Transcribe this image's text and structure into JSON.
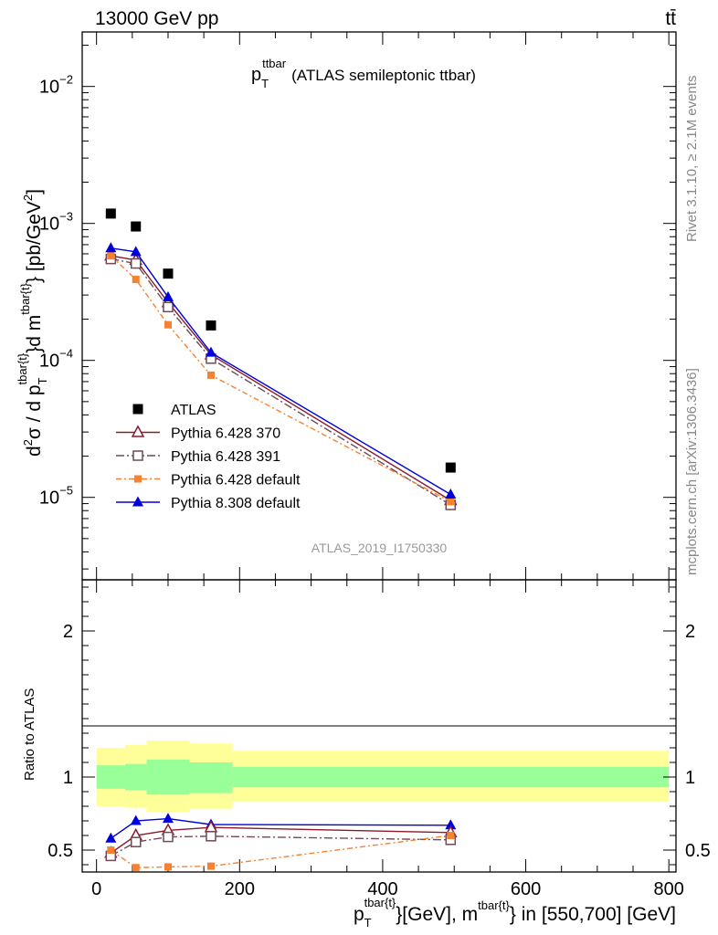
{
  "header": {
    "left": "13000 GeV pp",
    "right": "tt̄"
  },
  "side_labels": {
    "rivet": "Rivet 3.1.10, ≥ 2.1M events",
    "mcplots": "mcplots.cern.ch [arXiv:1306.3436]"
  },
  "plot_title": {
    "main": "p",
    "sub": "T",
    "sup": "ttbar",
    "rest": "(ATLAS semileptonic ttbar)"
  },
  "analysis_label": "ATLAS_2019_I1750330",
  "colors": {
    "data": "#000000",
    "p6_370": "#8b1a2b",
    "p6_391": "#6e4a5a",
    "p6_default": "#f58231",
    "p8_default": "#0000dd",
    "band_outer": "#ffff99",
    "band_inner": "#99ff99"
  },
  "chart_data": [
    {
      "type": "line",
      "panel": "main",
      "yscale": "log",
      "xlim": [
        -20,
        810
      ],
      "ylim": [
        2.5e-06,
        0.025
      ],
      "ylabel": {
        "pre": "d",
        "sup2": "2",
        "sigma": "σ  /  d p",
        "subT": "T",
        "sup_t": "tbar{t}",
        "mid": "}d m",
        "sup_m": "tbar{t}",
        "post": "} [pb/GeV",
        "sup_unit": "2",
        "end": "]"
      },
      "y_ticks": [
        {
          "value": 1e-05,
          "base": "10",
          "exp": "−5"
        },
        {
          "value": 0.0001,
          "base": "10",
          "exp": "−4"
        },
        {
          "value": 0.001,
          "base": "10",
          "exp": "−3"
        },
        {
          "value": 0.01,
          "base": "10",
          "exp": "−2"
        }
      ],
      "x": [
        20,
        55,
        100,
        160,
        495
      ],
      "series": [
        {
          "key": "data",
          "name": "ATLAS",
          "marker": "square",
          "values": [
            0.00118,
            0.00095,
            0.00043,
            0.00018,
            1.65e-05
          ]
        },
        {
          "key": "p6_370",
          "name": "Pythia 6.428 370",
          "marker": "triangle-open",
          "dash": "",
          "values": [
            0.00058,
            0.00054,
            0.000265,
            0.00011,
            9.5e-06
          ]
        },
        {
          "key": "p6_391",
          "name": "Pythia 6.428 391",
          "marker": "square-open",
          "dash": "9,3,2,3",
          "values": [
            0.00055,
            0.00051,
            0.000245,
            0.000103,
            8.8e-06
          ]
        },
        {
          "key": "p6_default",
          "name": "Pythia 6.428 default",
          "marker": "square-filled-small",
          "dash": "6,3,2,3",
          "values": [
            0.00058,
            0.00039,
            0.000182,
            7.8e-05,
            9.3e-06
          ]
        },
        {
          "key": "p8_default",
          "name": "Pythia 8.308 default",
          "marker": "triangle",
          "dash": "",
          "values": [
            0.00066,
            0.00062,
            0.00029,
            0.000114,
            1.05e-05
          ]
        }
      ]
    },
    {
      "type": "line",
      "panel": "ratio",
      "xlim": [
        -20,
        810
      ],
      "ylim": [
        0.35,
        2.35
      ],
      "ylabel": "Ratio to ATLAS",
      "y_ticks": [
        {
          "value": 0.5,
          "label": "0.5"
        },
        {
          "value": 1,
          "label": "1"
        },
        {
          "value": 2,
          "label": "2"
        }
      ],
      "x_ticks": [
        {
          "value": 0,
          "label": "0"
        },
        {
          "value": 200,
          "label": "200"
        },
        {
          "value": 400,
          "label": "400"
        },
        {
          "value": 600,
          "label": "600"
        },
        {
          "value": 800,
          "label": "800"
        }
      ],
      "xlabel": {
        "p": "p",
        "subT": "T",
        "sup_t": "tbar{t}",
        "mid": "}[GeV], m",
        "sup_m": "tbar{t}",
        "end": "} in [550,700] [GeV]"
      },
      "bands": [
        {
          "x0": 0,
          "x1": 40,
          "outer": [
            0.8,
            1.2
          ],
          "inner": [
            0.92,
            1.08
          ]
        },
        {
          "x0": 40,
          "x1": 70,
          "outer": [
            0.79,
            1.22
          ],
          "inner": [
            0.91,
            1.09
          ]
        },
        {
          "x0": 70,
          "x1": 130,
          "outer": [
            0.76,
            1.25
          ],
          "inner": [
            0.88,
            1.12
          ]
        },
        {
          "x0": 130,
          "x1": 190,
          "outer": [
            0.78,
            1.23
          ],
          "inner": [
            0.89,
            1.1
          ]
        },
        {
          "x0": 190,
          "x1": 800,
          "outer": [
            0.83,
            1.18
          ],
          "inner": [
            0.93,
            1.07
          ]
        }
      ],
      "x": [
        20,
        55,
        100,
        160,
        495
      ],
      "series": [
        {
          "key": "p8_default",
          "name": "Pythia 8.308 default",
          "marker": "triangle",
          "dash": "",
          "values": [
            0.58,
            0.7,
            0.715,
            0.675,
            0.67
          ]
        },
        {
          "key": "p6_370",
          "name": "Pythia 6.428 370",
          "marker": "triangle-open",
          "dash": "",
          "values": [
            0.48,
            0.6,
            0.635,
            0.655,
            0.62
          ]
        },
        {
          "key": "p6_391",
          "name": "Pythia 6.428 391",
          "marker": "square-open",
          "dash": "9,3,2,3",
          "values": [
            0.46,
            0.555,
            0.59,
            0.595,
            0.57
          ]
        },
        {
          "key": "p6_default",
          "name": "Pythia 6.428 default",
          "marker": "square-filled-small",
          "dash": "6,3,2,3",
          "values": [
            0.5,
            0.38,
            0.385,
            0.39,
            0.6
          ]
        }
      ]
    }
  ]
}
